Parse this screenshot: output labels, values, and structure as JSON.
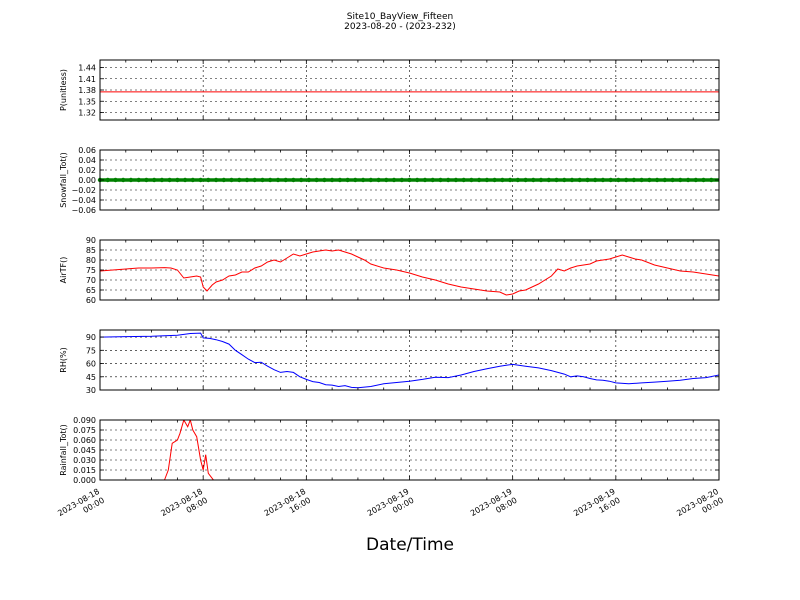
{
  "figure": {
    "title": "Site10_BayView_Fifteen",
    "subtitle": "2023-08-20 - (2023-232)",
    "xlabel": "Date/Time"
  },
  "x_tick_labels": [
    [
      "2023-08-18",
      "00:00"
    ],
    [
      "2023-08-18",
      "08:00"
    ],
    [
      "2023-08-18",
      "16:00"
    ],
    [
      "2023-08-19",
      "00:00"
    ],
    [
      "2023-08-19",
      "08:00"
    ],
    [
      "2023-08-19",
      "16:00"
    ],
    [
      "2023-08-20",
      "00:00"
    ]
  ],
  "chart_data": [
    {
      "type": "line",
      "ylabel": "P(unitless)",
      "ylim": [
        1.3,
        1.46
      ],
      "yticks": [
        1.32,
        1.35,
        1.38,
        1.41,
        1.44
      ],
      "ytick_labels": [
        "1.32",
        "1.35",
        "1.38",
        "1.41",
        "1.44"
      ],
      "color": "#ff0000",
      "marker": false,
      "grid": true,
      "x": [
        0,
        48
      ],
      "y": [
        1.375,
        1.375
      ]
    },
    {
      "type": "line",
      "ylabel": "Snowfall_Tot()",
      "ylim": [
        -0.06,
        0.06
      ],
      "yticks": [
        -0.06,
        -0.04,
        -0.02,
        0.0,
        0.02,
        0.04,
        0.06
      ],
      "ytick_labels": [
        "−0.06",
        "−0.04",
        "−0.02",
        "0.00",
        "0.02",
        "0.04",
        "0.06"
      ],
      "color": "#008000",
      "marker": true,
      "grid": true,
      "x": [
        0,
        48
      ],
      "y": [
        0,
        0
      ]
    },
    {
      "type": "line",
      "ylabel": "AirTF()",
      "ylim": [
        60,
        90
      ],
      "yticks": [
        60,
        65,
        70,
        75,
        80,
        85,
        90
      ],
      "ytick_labels": [
        "60",
        "65",
        "70",
        "75",
        "80",
        "85",
        "90"
      ],
      "color": "#ff0000",
      "marker": false,
      "grid": true,
      "x": [
        0,
        1,
        2,
        3,
        4,
        5,
        5.5,
        6,
        6.5,
        7,
        7.5,
        7.8,
        8,
        8.3,
        8.7,
        9,
        9.5,
        10,
        10.5,
        11,
        11.5,
        12,
        12.5,
        13,
        13.5,
        14,
        14.5,
        15,
        15.5,
        16,
        16.5,
        17,
        17.5,
        18,
        18.5,
        19,
        19.5,
        20,
        20.5,
        21,
        22,
        23,
        24,
        25,
        26,
        27,
        28,
        29,
        30,
        31,
        31.5,
        32,
        32.5,
        33,
        34,
        35,
        35.5,
        36,
        36.5,
        37,
        37.5,
        38,
        38.5,
        39,
        39.5,
        40,
        40.5,
        41,
        41.5,
        42,
        43,
        44,
        45,
        46,
        47,
        48
      ],
      "y": [
        74.5,
        75,
        75.5,
        76,
        76,
        76.2,
        76,
        75,
        71,
        71.5,
        72,
        71.5,
        66.5,
        64.5,
        67.5,
        69,
        70,
        72,
        72.5,
        74,
        74,
        76,
        77,
        79,
        80,
        79,
        81,
        83,
        82,
        83,
        84,
        84.5,
        85,
        84.5,
        85,
        84,
        83,
        81.5,
        80,
        78,
        76,
        75,
        73.5,
        71.5,
        70,
        68,
        66.5,
        65.5,
        64.5,
        64,
        62.5,
        63,
        64.5,
        65,
        68,
        72,
        75.5,
        74.5,
        76,
        77,
        77.5,
        78,
        79.5,
        80,
        80.5,
        81.5,
        82.5,
        81.5,
        80.5,
        80,
        77.5,
        76,
        74.5,
        74,
        73,
        72
      ]
    },
    {
      "type": "line",
      "ylabel": "RH(%)",
      "ylim": [
        30,
        98
      ],
      "yticks": [
        30,
        45,
        60,
        75,
        90
      ],
      "ytick_labels": [
        "30",
        "45",
        "60",
        "75",
        "90"
      ],
      "color": "#0000ff",
      "marker": false,
      "grid": true,
      "x": [
        0,
        2,
        4,
        5,
        6,
        7,
        7.8,
        8,
        8.5,
        9,
        9.5,
        10,
        10.5,
        11,
        11.5,
        12,
        12.5,
        13,
        13.5,
        14,
        14.5,
        15,
        15.5,
        16,
        16.5,
        17,
        17.5,
        18,
        18.5,
        19,
        19.5,
        20,
        21,
        22,
        23,
        24,
        25,
        26,
        27,
        28,
        29,
        30,
        31,
        31.5,
        32,
        33,
        34,
        35,
        36,
        36.5,
        37,
        37.5,
        38,
        38.5,
        39,
        39.5,
        40,
        41,
        42,
        43,
        44,
        45,
        46,
        47,
        48
      ],
      "y": [
        90,
        90.5,
        91,
        91.5,
        92,
        94,
        94.5,
        89,
        88.5,
        87,
        85,
        82,
        75,
        70,
        65,
        61,
        61.5,
        57,
        53,
        50,
        51,
        50,
        45,
        42,
        39.5,
        38.5,
        36,
        35.5,
        34,
        35,
        33,
        32.5,
        34,
        37,
        38.5,
        40,
        42,
        44.5,
        44,
        47,
        51,
        54,
        57,
        58,
        59,
        57,
        55,
        52,
        48,
        45,
        46,
        45,
        43,
        41.5,
        41,
        40,
        38,
        37,
        38,
        39,
        40,
        41,
        43,
        44,
        47
      ]
    },
    {
      "type": "line",
      "ylabel": "Rainfall_Tot()",
      "ylim": [
        0,
        0.09
      ],
      "yticks": [
        0.0,
        0.015,
        0.03,
        0.045,
        0.06,
        0.075,
        0.09
      ],
      "ytick_labels": [
        "0.000",
        "0.015",
        "0.030",
        "0.045",
        "0.060",
        "0.075",
        "0.090"
      ],
      "color": "#ff0000",
      "marker": false,
      "grid": true,
      "x": [
        0,
        5,
        5.3,
        5.6,
        6,
        6.2,
        6.5,
        6.8,
        7,
        7.2,
        7.5,
        7.8,
        8,
        8.2,
        8.4,
        8.6,
        8.8,
        9,
        48
      ],
      "y": [
        0,
        0,
        0.015,
        0.055,
        0.06,
        0.07,
        0.09,
        0.08,
        0.09,
        0.075,
        0.065,
        0.03,
        0.015,
        0.038,
        0.01,
        0.005,
        0,
        0,
        0
      ]
    }
  ]
}
